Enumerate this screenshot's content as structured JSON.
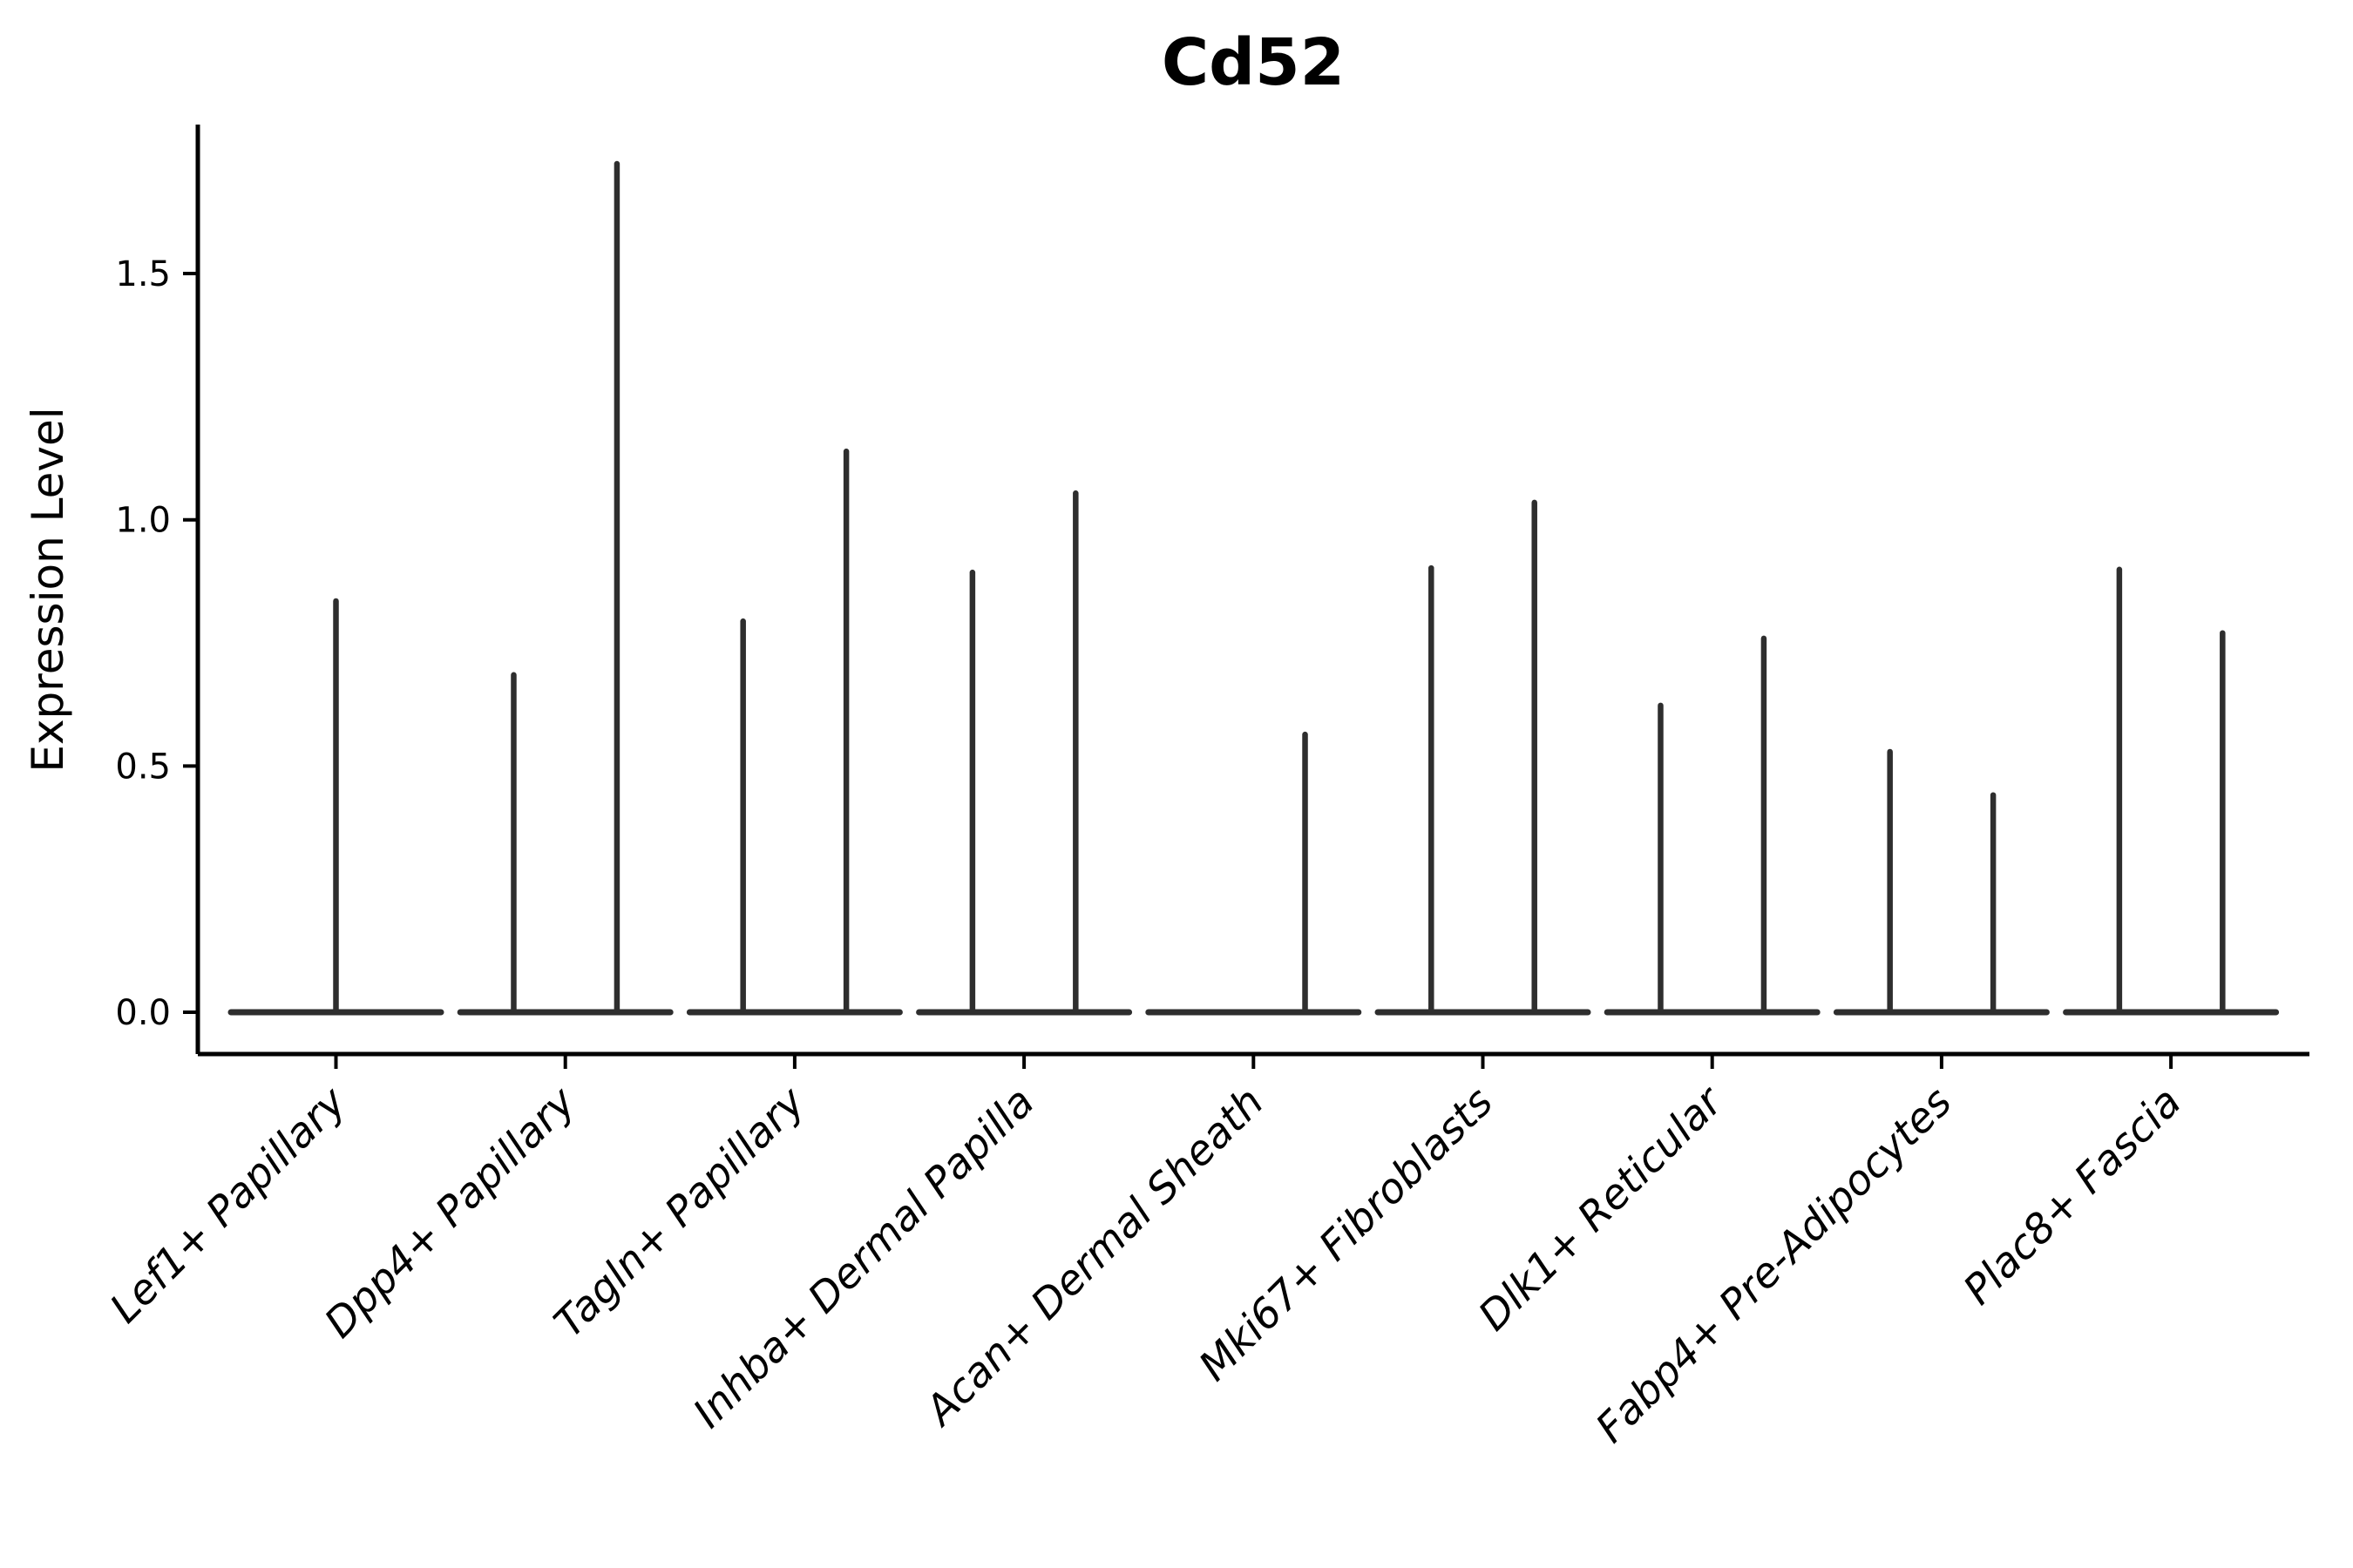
{
  "title": "Cd52",
  "ylabel": "Expression Level",
  "chart_data": {
    "type": "violin",
    "title": "Cd52",
    "xlabel": "",
    "ylabel": "Expression Level",
    "legend": "none",
    "grid": false,
    "ylim": [
      -0.085,
      1.8
    ],
    "ytick_labels": [
      "0.0",
      "0.5",
      "1.0",
      "1.5"
    ],
    "ytick_values": [
      0.0,
      0.5,
      1.0,
      1.5
    ],
    "categories": [
      "Lef1+ Papillary",
      "Dpp4+ Papillary",
      "Tagln+ Papillary",
      "Inhba+ Dermal Papilla",
      "Acan+ Dermal Sheath",
      "Mki67+ Fibroblasts",
      "Dlk1+ Reticular",
      "Fabp4+ Pre-Adipocytes",
      "Plac8+ Fascia"
    ],
    "baseline_value": 0.0,
    "violins": [
      {
        "category": "Lef1+ Papillary",
        "spikes": [
          {
            "offset": 0.0,
            "max": 0.835
          }
        ]
      },
      {
        "category": "Dpp4+ Papillary",
        "spikes": [
          {
            "offset": -0.225,
            "max": 0.685
          },
          {
            "offset": 0.225,
            "max": 1.723
          }
        ]
      },
      {
        "category": "Tagln+ Papillary",
        "spikes": [
          {
            "offset": -0.225,
            "max": 0.794
          },
          {
            "offset": 0.225,
            "max": 1.139
          }
        ]
      },
      {
        "category": "Inhba+ Dermal Papilla",
        "spikes": [
          {
            "offset": -0.225,
            "max": 0.893
          },
          {
            "offset": 0.225,
            "max": 1.054
          }
        ]
      },
      {
        "category": "Acan+ Dermal Sheath",
        "spikes": [
          {
            "offset": 0.225,
            "max": 0.564
          }
        ]
      },
      {
        "category": "Mki67+ Fibroblasts",
        "spikes": [
          {
            "offset": -0.225,
            "max": 0.902
          },
          {
            "offset": 0.225,
            "max": 1.035
          }
        ]
      },
      {
        "category": "Dlk1+ Reticular",
        "spikes": [
          {
            "offset": -0.225,
            "max": 0.623
          },
          {
            "offset": 0.225,
            "max": 0.759
          }
        ]
      },
      {
        "category": "Fabp4+ Pre-Adipocytes",
        "spikes": [
          {
            "offset": -0.225,
            "max": 0.529
          },
          {
            "offset": 0.225,
            "max": 0.441
          }
        ]
      },
      {
        "category": "Plac8+ Fascia",
        "spikes": [
          {
            "offset": -0.225,
            "max": 0.899
          },
          {
            "offset": 0.225,
            "max": 0.77
          }
        ]
      }
    ],
    "colors": {
      "violin_line": "#2e2e2e",
      "axis": "#000000",
      "text": "#000000",
      "background": "#ffffff"
    }
  }
}
